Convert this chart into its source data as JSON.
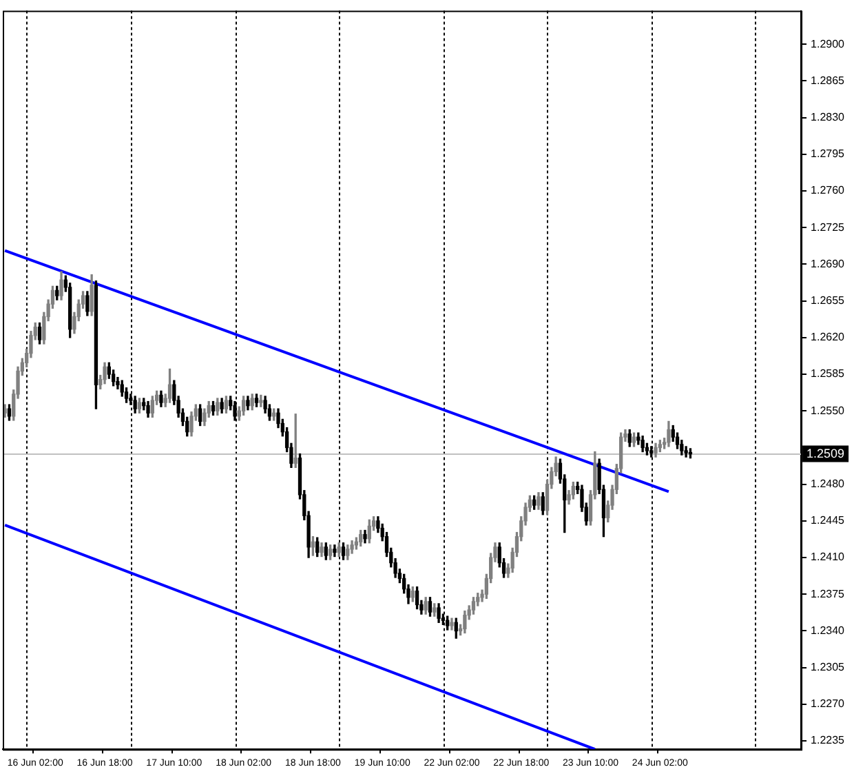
{
  "chart_data": {
    "type": "candlestick",
    "color": "#000000",
    "categories": [
      null,
      null,
      null,
      null,
      null,
      null,
      null,
      "16 Jun 02:00",
      null,
      null,
      null,
      null,
      null,
      null,
      null,
      null,
      null,
      null,
      null,
      null,
      null,
      null,
      null,
      "16 Jun 18:00",
      null,
      null,
      null,
      null,
      null,
      null,
      null,
      null,
      null,
      null,
      null,
      null,
      null,
      null,
      null,
      "17 Jun 10:00",
      null,
      null,
      null,
      null,
      null,
      null,
      null,
      null,
      null,
      null,
      null,
      null,
      null,
      null,
      null,
      "18 Jun 02:00",
      null,
      null,
      null,
      null,
      null,
      null,
      null,
      null,
      null,
      null,
      null,
      null,
      null,
      null,
      null,
      "18 Jun 18:00",
      null,
      null,
      null,
      null,
      null,
      null,
      null,
      null,
      null,
      null,
      null,
      null,
      null,
      null,
      null,
      "19 Jun 10:00",
      null,
      null,
      null,
      null,
      null,
      null,
      null,
      null,
      null,
      null,
      null,
      null,
      null,
      null,
      null,
      "22 Jun 02:00",
      null,
      null,
      null,
      null,
      null,
      null,
      null,
      null,
      null,
      null,
      null,
      null,
      null,
      null,
      null,
      "22 Jun 18:00",
      null,
      null,
      null,
      null,
      null,
      null,
      null,
      null,
      null,
      null,
      null,
      null,
      null,
      null,
      null,
      "23 Jun 10:00",
      null,
      null,
      null,
      null,
      null,
      null,
      null,
      null,
      null,
      null,
      null,
      null,
      null,
      null,
      null,
      "24 Jun 02:00",
      null,
      null,
      null,
      null,
      null,
      null,
      null,
      null,
      null,
      null,
      null,
      null,
      null,
      null,
      null,
      null,
      null,
      null,
      null,
      null,
      null,
      null,
      null,
      null,
      null,
      null,
      null,
      null,
      null,
      null,
      null,
      null
    ],
    "colors": [
      "#808080",
      "#000000",
      "#808080",
      "#808080",
      "#808080",
      "#808080",
      "#808080",
      "#808080",
      "#000000",
      "#808080",
      "#808080",
      "#808080",
      "#000000",
      "#808080",
      "#000000",
      "#000000",
      "#808080",
      "#808080",
      "#808080",
      "#000000",
      "#808080",
      "#000000",
      "#808080",
      "#808080",
      "#000000",
      "#000000",
      "#000000",
      "#000000",
      "#000000",
      "#000000",
      "#000000",
      "#808080",
      "#000000",
      "#000000",
      "#808080",
      "#808080",
      "#000000",
      "#808080",
      "#808080",
      "#000000",
      "#000000",
      "#000000",
      "#000000",
      "#808080",
      "#808080",
      "#000000",
      "#808080",
      "#808080",
      "#000000",
      "#808080",
      "#000000",
      "#808080",
      "#000000",
      "#000000",
      "#808080",
      "#808080",
      "#000000",
      "#808080",
      "#000000",
      "#808080",
      "#000000",
      "#000000",
      "#808080",
      "#000000",
      "#000000",
      "#000000",
      "#000000",
      "#808080",
      "#000000",
      "#000000",
      "#000000",
      "#808080",
      "#000000",
      "#808080",
      "#000000",
      "#808080",
      "#000000",
      "#808080",
      "#000000",
      "#808080",
      "#808080",
      "#808080",
      "#808080",
      "#000000",
      "#808080",
      "#808080",
      "#000000",
      "#000000",
      "#000000",
      "#000000",
      "#000000",
      "#000000",
      "#000000",
      "#000000",
      "#808080",
      "#000000",
      "#000000",
      "#808080",
      "#000000",
      "#808080",
      "#000000",
      "#000000",
      "#000000",
      "#808080",
      "#000000",
      "#808080",
      "#808080",
      "#808080",
      "#808080",
      "#808080",
      "#808080",
      "#808080",
      "#808080",
      "#808080",
      "#000000",
      "#000000",
      "#808080",
      "#808080",
      "#808080",
      "#808080",
      "#808080",
      "#808080",
      "#000000",
      "#808080",
      "#000000",
      "#808080",
      "#808080",
      "#808080",
      "#000000",
      "#000000",
      "#808080",
      "#808080",
      "#000000",
      "#000000",
      "#000000",
      "#808080",
      "#808080",
      "#000000",
      "#000000",
      "#808080",
      "#808080",
      "#808080",
      "#808080",
      "#808080",
      "#000000",
      "#808080",
      "#000000",
      "#000000",
      "#000000",
      "#000000",
      "#808080",
      "#808080",
      "#808080",
      "#808080",
      "#000000",
      "#000000",
      "#000000",
      "#000000",
      "#000000",
      null,
      null,
      null,
      null,
      null,
      null,
      null,
      null,
      null,
      null,
      null,
      null,
      null,
      null,
      null,
      null,
      null,
      null,
      null,
      null,
      null,
      null,
      null,
      null,
      null
    ],
    "ohlc": [
      [
        1.2548,
        1.2556,
        1.2544,
        1.2552
      ],
      [
        1.2552,
        1.2556,
        1.2541,
        1.2545
      ],
      [
        1.2545,
        1.257,
        1.2541,
        1.2566
      ],
      [
        1.2566,
        1.2592,
        1.2562,
        1.2588
      ],
      [
        1.2588,
        1.26,
        1.2584,
        1.2596
      ],
      [
        1.2596,
        1.2609,
        1.2592,
        1.2605
      ],
      [
        1.2605,
        1.2626,
        1.2601,
        1.2622
      ],
      [
        1.2622,
        1.2634,
        1.2618,
        1.263
      ],
      [
        1.263,
        1.2634,
        1.2614,
        1.2618
      ],
      [
        1.2618,
        1.2644,
        1.2614,
        1.264
      ],
      [
        1.264,
        1.2656,
        1.2636,
        1.2652
      ],
      [
        1.2652,
        1.2669,
        1.2648,
        1.2665
      ],
      [
        1.2665,
        1.2669,
        1.2656,
        1.266
      ],
      [
        1.266,
        1.2683,
        1.2656,
        1.2675
      ],
      [
        1.2675,
        1.2679,
        1.2664,
        1.2668
      ],
      [
        1.2668,
        1.2672,
        1.262,
        1.2628
      ],
      [
        1.2628,
        1.2644,
        1.2624,
        1.264
      ],
      [
        1.264,
        1.2656,
        1.2636,
        1.2652
      ],
      [
        1.2652,
        1.2664,
        1.2648,
        1.266
      ],
      [
        1.266,
        1.2664,
        1.2641,
        1.2645
      ],
      [
        1.2645,
        1.268,
        1.2641,
        1.267
      ],
      [
        1.267,
        1.2674,
        1.2552,
        1.2575
      ],
      [
        1.2575,
        1.2584,
        1.2571,
        1.258
      ],
      [
        1.258,
        1.2596,
        1.2576,
        1.2592
      ],
      [
        1.2592,
        1.2596,
        1.2581,
        1.2585
      ],
      [
        1.2585,
        1.2589,
        1.2574,
        1.2578
      ],
      [
        1.2578,
        1.2582,
        1.2571,
        1.2575
      ],
      [
        1.2575,
        1.2579,
        1.2564,
        1.2568
      ],
      [
        1.2568,
        1.2572,
        1.2558,
        1.2562
      ],
      [
        1.2562,
        1.2566,
        1.2556,
        1.256
      ],
      [
        1.256,
        1.2564,
        1.2548,
        1.2552
      ],
      [
        1.2552,
        1.2562,
        1.2548,
        1.2558
      ],
      [
        1.2558,
        1.2562,
        1.2551,
        1.2555
      ],
      [
        1.2555,
        1.2559,
        1.2544,
        1.2548
      ],
      [
        1.2548,
        1.2564,
        1.2544,
        1.256
      ],
      [
        1.256,
        1.2569,
        1.2556,
        1.2565
      ],
      [
        1.2565,
        1.2569,
        1.2554,
        1.2558
      ],
      [
        1.2558,
        1.2566,
        1.2554,
        1.2562
      ],
      [
        1.2562,
        1.259,
        1.2558,
        1.2575
      ],
      [
        1.2575,
        1.2579,
        1.2556,
        1.256
      ],
      [
        1.256,
        1.2564,
        1.2544,
        1.2548
      ],
      [
        1.2548,
        1.2552,
        1.2536,
        1.254
      ],
      [
        1.254,
        1.2544,
        1.2526,
        1.253
      ],
      [
        1.253,
        1.2549,
        1.2526,
        1.2545
      ],
      [
        1.2545,
        1.2556,
        1.2541,
        1.2552
      ],
      [
        1.2552,
        1.2556,
        1.2536,
        1.254
      ],
      [
        1.254,
        1.2552,
        1.2536,
        1.2548
      ],
      [
        1.2548,
        1.2559,
        1.2544,
        1.2555
      ],
      [
        1.2555,
        1.2559,
        1.2546,
        1.255
      ],
      [
        1.255,
        1.2562,
        1.2546,
        1.2558
      ],
      [
        1.2558,
        1.2562,
        1.2548,
        1.2552
      ],
      [
        1.2552,
        1.2564,
        1.2548,
        1.256
      ],
      [
        1.256,
        1.2564,
        1.2551,
        1.2555
      ],
      [
        1.2555,
        1.2559,
        1.2541,
        1.2545
      ],
      [
        1.2545,
        1.2554,
        1.2541,
        1.255
      ],
      [
        1.255,
        1.2564,
        1.2546,
        1.256
      ],
      [
        1.256,
        1.2564,
        1.2551,
        1.2555
      ],
      [
        1.2555,
        1.2566,
        1.2551,
        1.2562
      ],
      [
        1.2562,
        1.2566,
        1.2554,
        1.2558
      ],
      [
        1.2558,
        1.2565,
        1.2554,
        1.256
      ],
      [
        1.256,
        1.2564,
        1.2548,
        1.2552
      ],
      [
        1.2552,
        1.2556,
        1.2541,
        1.2545
      ],
      [
        1.2545,
        1.2552,
        1.2541,
        1.2548
      ],
      [
        1.2548,
        1.2552,
        1.2534,
        1.2538
      ],
      [
        1.2538,
        1.2542,
        1.2526,
        1.253
      ],
      [
        1.253,
        1.2534,
        1.2511,
        1.2515
      ],
      [
        1.2515,
        1.2519,
        1.2496,
        1.25
      ],
      [
        1.25,
        1.2547,
        1.2496,
        1.2505
      ],
      [
        1.2505,
        1.2509,
        1.2466,
        1.247
      ],
      [
        1.247,
        1.2474,
        1.2446,
        1.245
      ],
      [
        1.245,
        1.2454,
        1.241,
        1.242
      ],
      [
        1.242,
        1.243,
        1.2412,
        1.2425
      ],
      [
        1.2425,
        1.2429,
        1.2411,
        1.2415
      ],
      [
        1.2415,
        1.2424,
        1.2411,
        1.242
      ],
      [
        1.242,
        1.2424,
        1.2408,
        1.2412
      ],
      [
        1.2412,
        1.2422,
        1.2408,
        1.2418
      ],
      [
        1.2418,
        1.2422,
        1.2411,
        1.2415
      ],
      [
        1.2415,
        1.2424,
        1.2411,
        1.242
      ],
      [
        1.242,
        1.2424,
        1.2408,
        1.2412
      ],
      [
        1.2412,
        1.2422,
        1.2408,
        1.2418
      ],
      [
        1.2418,
        1.2426,
        1.2414,
        1.2422
      ],
      [
        1.2422,
        1.2429,
        1.2418,
        1.2425
      ],
      [
        1.2425,
        1.2436,
        1.2421,
        1.2432
      ],
      [
        1.2432,
        1.2436,
        1.2424,
        1.2428
      ],
      [
        1.2428,
        1.2446,
        1.2424,
        1.244
      ],
      [
        1.244,
        1.2449,
        1.2436,
        1.2445
      ],
      [
        1.2445,
        1.2449,
        1.2434,
        1.2438
      ],
      [
        1.2438,
        1.2442,
        1.2426,
        1.243
      ],
      [
        1.243,
        1.2434,
        1.2411,
        1.2415
      ],
      [
        1.2415,
        1.2419,
        1.2401,
        1.2405
      ],
      [
        1.2405,
        1.2409,
        1.2391,
        1.2395
      ],
      [
        1.2395,
        1.2399,
        1.2386,
        1.239
      ],
      [
        1.239,
        1.2394,
        1.2376,
        1.238
      ],
      [
        1.238,
        1.2384,
        1.2366,
        1.2372
      ],
      [
        1.2372,
        1.2382,
        1.2368,
        1.2378
      ],
      [
        1.2378,
        1.2382,
        1.2361,
        1.2365
      ],
      [
        1.2365,
        1.2369,
        1.2356,
        1.236
      ],
      [
        1.236,
        1.2372,
        1.2356,
        1.2368
      ],
      [
        1.2368,
        1.2372,
        1.2354,
        1.2358
      ],
      [
        1.2358,
        1.2366,
        1.2354,
        1.2362
      ],
      [
        1.2362,
        1.2366,
        1.2348,
        1.2352
      ],
      [
        1.2352,
        1.2356,
        1.2346,
        1.235
      ],
      [
        1.235,
        1.2354,
        1.2341,
        1.2345
      ],
      [
        1.2345,
        1.2352,
        1.2341,
        1.2348
      ],
      [
        1.2348,
        1.2352,
        1.2333,
        1.234
      ],
      [
        1.234,
        1.2346,
        1.2336,
        1.2342
      ],
      [
        1.2342,
        1.2359,
        1.2338,
        1.2355
      ],
      [
        1.2355,
        1.2364,
        1.2351,
        1.236
      ],
      [
        1.236,
        1.2372,
        1.2356,
        1.2368
      ],
      [
        1.2368,
        1.2376,
        1.2364,
        1.2372
      ],
      [
        1.2372,
        1.2379,
        1.2368,
        1.2375
      ],
      [
        1.2375,
        1.2394,
        1.2371,
        1.239
      ],
      [
        1.239,
        1.2414,
        1.2386,
        1.241
      ],
      [
        1.241,
        1.2424,
        1.2406,
        1.242
      ],
      [
        1.242,
        1.2424,
        1.2401,
        1.2405
      ],
      [
        1.2405,
        1.2409,
        1.2391,
        1.2395
      ],
      [
        1.2395,
        1.2404,
        1.2391,
        1.24
      ],
      [
        1.24,
        1.2419,
        1.2396,
        1.2415
      ],
      [
        1.2415,
        1.2434,
        1.2411,
        1.243
      ],
      [
        1.243,
        1.2449,
        1.2426,
        1.2445
      ],
      [
        1.2445,
        1.2462,
        1.2441,
        1.2458
      ],
      [
        1.2458,
        1.2469,
        1.2454,
        1.2465
      ],
      [
        1.2465,
        1.2469,
        1.2456,
        1.246
      ],
      [
        1.246,
        1.2472,
        1.2456,
        1.2468
      ],
      [
        1.2468,
        1.2472,
        1.2451,
        1.2455
      ],
      [
        1.2455,
        1.2484,
        1.2451,
        1.248
      ],
      [
        1.248,
        1.2496,
        1.2476,
        1.2492
      ],
      [
        1.2492,
        1.2506,
        1.2488,
        1.25
      ],
      [
        1.25,
        1.2504,
        1.2481,
        1.2485
      ],
      [
        1.2485,
        1.2489,
        1.2434,
        1.2465
      ],
      [
        1.2465,
        1.2474,
        1.2461,
        1.247
      ],
      [
        1.247,
        1.2482,
        1.2466,
        1.2478
      ],
      [
        1.2478,
        1.2482,
        1.2471,
        1.2475
      ],
      [
        1.2475,
        1.2479,
        1.2454,
        1.2458
      ],
      [
        1.2458,
        1.2462,
        1.2441,
        1.2445
      ],
      [
        1.2445,
        1.2474,
        1.2441,
        1.247
      ],
      [
        1.247,
        1.2511,
        1.2466,
        1.25
      ],
      [
        1.25,
        1.2504,
        1.2471,
        1.2475
      ],
      [
        1.2475,
        1.2479,
        1.243,
        1.2448
      ],
      [
        1.2448,
        1.2464,
        1.2444,
        1.246
      ],
      [
        1.246,
        1.2479,
        1.2456,
        1.2475
      ],
      [
        1.2475,
        1.2499,
        1.2471,
        1.2495
      ],
      [
        1.2495,
        1.2529,
        1.2491,
        1.2525
      ],
      [
        1.2525,
        1.2532,
        1.2521,
        1.2528
      ],
      [
        1.2528,
        1.2532,
        1.2516,
        1.252
      ],
      [
        1.252,
        1.2529,
        1.2516,
        1.2525
      ],
      [
        1.2525,
        1.2529,
        1.2518,
        1.2522
      ],
      [
        1.2522,
        1.2526,
        1.2511,
        1.2515
      ],
      [
        1.2515,
        1.2519,
        1.2508,
        1.2512
      ],
      [
        1.2512,
        1.2516,
        1.2506,
        1.251
      ],
      [
        1.251,
        1.2519,
        1.2506,
        1.2515
      ],
      [
        1.2515,
        1.2522,
        1.2511,
        1.2518
      ],
      [
        1.2518,
        1.2524,
        1.2514,
        1.252
      ],
      [
        1.252,
        1.254,
        1.2516,
        1.2532
      ],
      [
        1.2532,
        1.2536,
        1.2521,
        1.2525
      ],
      [
        1.2525,
        1.2529,
        1.2514,
        1.2518
      ],
      [
        1.2518,
        1.2522,
        1.2508,
        1.2512
      ],
      [
        1.2512,
        1.2516,
        1.2506,
        1.251
      ],
      [
        1.251,
        1.2514,
        1.2505,
        1.2509
      ],
      null,
      null,
      null,
      null,
      null,
      null,
      null,
      null,
      null,
      null,
      null,
      null,
      null,
      null,
      null,
      null,
      null,
      null,
      null,
      null,
      null,
      null,
      null,
      null,
      null
    ],
    "series": [
      {
        "type": "line",
        "color": "#0000ff",
        "values": [
          1.2703,
          null,
          null,
          null,
          null,
          null,
          null,
          null,
          null,
          null,
          null,
          null,
          null,
          null,
          null,
          null,
          null,
          null,
          null,
          null,
          null,
          null,
          null,
          null,
          null,
          null,
          null,
          null,
          null,
          null,
          null,
          null,
          null,
          null,
          null,
          null,
          null,
          null,
          null,
          null,
          null,
          null,
          null,
          null,
          null,
          null,
          null,
          null,
          null,
          null,
          null,
          null,
          null,
          null,
          null,
          null,
          null,
          null,
          null,
          null,
          null,
          null,
          null,
          null,
          null,
          null,
          null,
          null,
          null,
          null,
          null,
          null,
          null,
          null,
          null,
          null,
          null,
          null,
          null,
          null,
          null,
          null,
          null,
          null,
          null,
          null,
          null,
          null,
          null,
          null,
          null,
          null,
          null,
          null,
          null,
          null,
          null,
          null,
          null,
          null,
          null,
          null,
          null,
          null,
          null,
          null,
          null,
          null,
          null,
          null,
          null,
          null,
          null,
          null,
          null,
          null,
          null,
          null,
          null,
          null,
          null,
          null,
          null,
          null,
          null,
          null,
          null,
          null,
          null,
          null,
          null,
          null,
          null,
          null,
          null,
          null,
          null,
          null,
          null,
          null,
          null,
          null,
          null,
          null,
          null,
          null,
          null,
          null,
          null,
          null,
          null,
          null,
          null,
          1.2473,
          null,
          null,
          null,
          null,
          null,
          null,
          null,
          null,
          null,
          null,
          null,
          null,
          null,
          null,
          null,
          null,
          null,
          null,
          null,
          null,
          null,
          null,
          null,
          null,
          null,
          null,
          null,
          null,
          null,
          null
        ]
      },
      {
        "type": "line",
        "color": "#0000ff",
        "values": [
          1.2441,
          null,
          null,
          null,
          null,
          null,
          null,
          null,
          null,
          null,
          null,
          null,
          null,
          null,
          null,
          null,
          null,
          null,
          null,
          null,
          null,
          null,
          null,
          null,
          null,
          null,
          null,
          null,
          null,
          null,
          null,
          null,
          null,
          null,
          null,
          null,
          null,
          null,
          null,
          null,
          null,
          null,
          null,
          null,
          null,
          null,
          null,
          null,
          null,
          null,
          null,
          null,
          null,
          null,
          null,
          null,
          null,
          null,
          null,
          null,
          null,
          null,
          null,
          null,
          null,
          null,
          null,
          null,
          null,
          null,
          null,
          null,
          null,
          null,
          null,
          null,
          null,
          null,
          null,
          null,
          null,
          null,
          null,
          null,
          null,
          null,
          null,
          null,
          null,
          null,
          null,
          null,
          null,
          null,
          null,
          null,
          null,
          null,
          null,
          null,
          null,
          null,
          null,
          null,
          null,
          null,
          null,
          null,
          null,
          null,
          null,
          null,
          null,
          null,
          null,
          null,
          null,
          null,
          null,
          null,
          null,
          null,
          null,
          null,
          null,
          null,
          null,
          null,
          null,
          null,
          null,
          null,
          null,
          null,
          null,
          null,
          1.2227,
          null,
          null,
          null,
          null,
          null,
          null,
          null,
          null,
          null,
          null,
          null,
          null,
          null,
          null,
          null,
          null,
          null,
          null,
          null,
          null,
          null,
          null,
          null,
          null,
          null,
          null,
          null,
          null,
          null,
          null,
          null,
          null,
          null,
          null,
          null,
          null,
          null,
          null,
          null,
          null,
          null,
          null,
          null,
          null,
          null,
          null,
          null
        ]
      }
    ],
    "ylim": [
      1.2227,
      1.2932
    ],
    "yticks": [
      {
        "value": 1.29,
        "label": "1.2900"
      },
      1.2865,
      {
        "value": 1.283,
        "label": "1.2830"
      },
      1.2795,
      {
        "value": 1.276,
        "label": "1.2760"
      },
      1.2725,
      {
        "value": 1.269,
        "label": "1.2690"
      },
      1.2655,
      {
        "value": 1.262,
        "label": "1.2620"
      },
      1.2585,
      {
        "value": 1.255,
        "label": "1.2550"
      },
      {
        "value": 1.248,
        "label": "1.2480"
      },
      1.2445,
      {
        "value": 1.241,
        "label": "1.2410"
      },
      1.2375,
      {
        "value": 1.234,
        "label": "1.2340"
      },
      1.2305,
      {
        "value": 1.227,
        "label": "1.2270"
      },
      1.2235
    ],
    "ref_lines": [
      {
        "axis": "y",
        "value": 1.2509,
        "label": "1.2509",
        "color": "#c0c0c0"
      }
    ]
  }
}
